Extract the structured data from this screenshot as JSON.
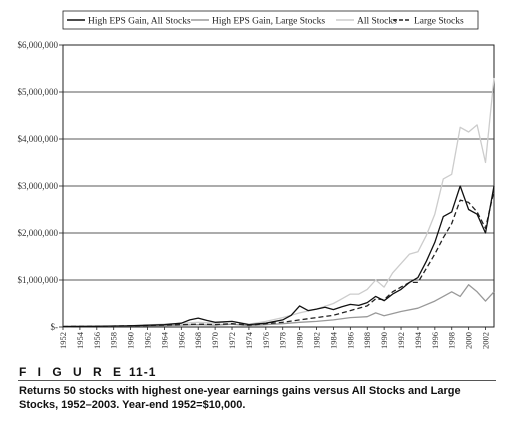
{
  "figure": {
    "label": "F I G U R E",
    "number": "11-1",
    "caption": "Returns 50 stocks with highest one-year earnings gains versus All Stocks and Large Stocks, 1952–2003. Year-end 1952=$10,000."
  },
  "chart_data": {
    "type": "line",
    "title": "",
    "xlabel": "",
    "ylabel": "",
    "ylim": [
      0,
      6000000
    ],
    "xlim": [
      1952,
      2003
    ],
    "y_ticks": [
      0,
      1000000,
      2000000,
      3000000,
      4000000,
      5000000,
      6000000
    ],
    "y_tick_labels": [
      "$-",
      "$1,000,000",
      "$2,000,000",
      "$3,000,000",
      "$4,000,000",
      "$5,000,000",
      "$6,000,000"
    ],
    "x_tick_labels": [
      "1952",
      "1954",
      "1956",
      "1958",
      "1960",
      "1962",
      "1964",
      "1966",
      "1968",
      "1970",
      "1972",
      "1974",
      "1976",
      "1978",
      "1980",
      "1982",
      "1984",
      "1986",
      "1988",
      "1990",
      "1992",
      "1994",
      "1996",
      "1998",
      "2000",
      "2002"
    ],
    "grid": "horizontal",
    "legend_position": "top",
    "series": [
      {
        "name": "High EPS Gain, All Stocks",
        "color": "#111111",
        "dash": "solid",
        "x": [
          1952,
          1956,
          1960,
          1964,
          1966,
          1967,
          1968,
          1969,
          1970,
          1972,
          1974,
          1976,
          1978,
          1979,
          1980,
          1981,
          1982,
          1983,
          1984,
          1985,
          1986,
          1987,
          1988,
          1989,
          1990,
          1991,
          1992,
          1993,
          1994,
          1995,
          1996,
          1997,
          1998,
          1999,
          2000,
          2001,
          2002,
          2003
        ],
        "values": [
          10000,
          15000,
          25000,
          50000,
          80000,
          150000,
          190000,
          140000,
          100000,
          120000,
          50000,
          80000,
          150000,
          250000,
          450000,
          350000,
          380000,
          420000,
          370000,
          430000,
          480000,
          460000,
          520000,
          650000,
          560000,
          700000,
          800000,
          950000,
          1050000,
          1400000,
          1800000,
          2350000,
          2450000,
          3000000,
          2500000,
          2400000,
          2000000,
          3000000
        ]
      },
      {
        "name": "High EPS Gain, Large Stocks",
        "color": "#999999",
        "dash": "solid",
        "x": [
          1952,
          1956,
          1960,
          1964,
          1968,
          1970,
          1972,
          1974,
          1976,
          1978,
          1980,
          1982,
          1984,
          1986,
          1988,
          1989,
          1990,
          1992,
          1994,
          1996,
          1997,
          1998,
          1999,
          2000,
          2001,
          2002,
          2003
        ],
        "values": [
          10000,
          15000,
          20000,
          30000,
          50000,
          40000,
          60000,
          30000,
          50000,
          70000,
          100000,
          120000,
          150000,
          200000,
          220000,
          300000,
          240000,
          330000,
          400000,
          550000,
          650000,
          750000,
          650000,
          900000,
          750000,
          550000,
          750000
        ]
      },
      {
        "name": "All Stocks",
        "color": "#cccccc",
        "dash": "solid",
        "x": [
          1952,
          1956,
          1960,
          1964,
          1968,
          1970,
          1972,
          1974,
          1976,
          1978,
          1980,
          1982,
          1984,
          1985,
          1986,
          1987,
          1988,
          1989,
          1990,
          1991,
          1992,
          1993,
          1994,
          1995,
          1996,
          1997,
          1998,
          1999,
          2000,
          2001,
          2002,
          2003
        ],
        "values": [
          10000,
          20000,
          30000,
          60000,
          100000,
          80000,
          120000,
          60000,
          120000,
          200000,
          300000,
          380000,
          500000,
          600000,
          700000,
          700000,
          800000,
          1000000,
          850000,
          1150000,
          1350000,
          1550000,
          1600000,
          1950000,
          2400000,
          3150000,
          3250000,
          4250000,
          4150000,
          4300000,
          3500000,
          5300000
        ]
      },
      {
        "name": "Large Stocks",
        "color": "#222222",
        "dash": "dashed",
        "x": [
          1952,
          1956,
          1960,
          1964,
          1968,
          1970,
          1972,
          1974,
          1976,
          1978,
          1980,
          1982,
          1984,
          1986,
          1988,
          1989,
          1990,
          1991,
          1992,
          1993,
          1994,
          1995,
          1996,
          1997,
          1998,
          1999,
          2000,
          2001,
          2002,
          2003
        ],
        "values": [
          10000,
          15000,
          25000,
          40000,
          60000,
          50000,
          70000,
          40000,
          70000,
          100000,
          150000,
          200000,
          250000,
          350000,
          450000,
          600000,
          580000,
          750000,
          850000,
          950000,
          950000,
          1250000,
          1550000,
          1900000,
          2200000,
          2700000,
          2650000,
          2450000,
          2100000,
          2900000
        ]
      }
    ]
  }
}
